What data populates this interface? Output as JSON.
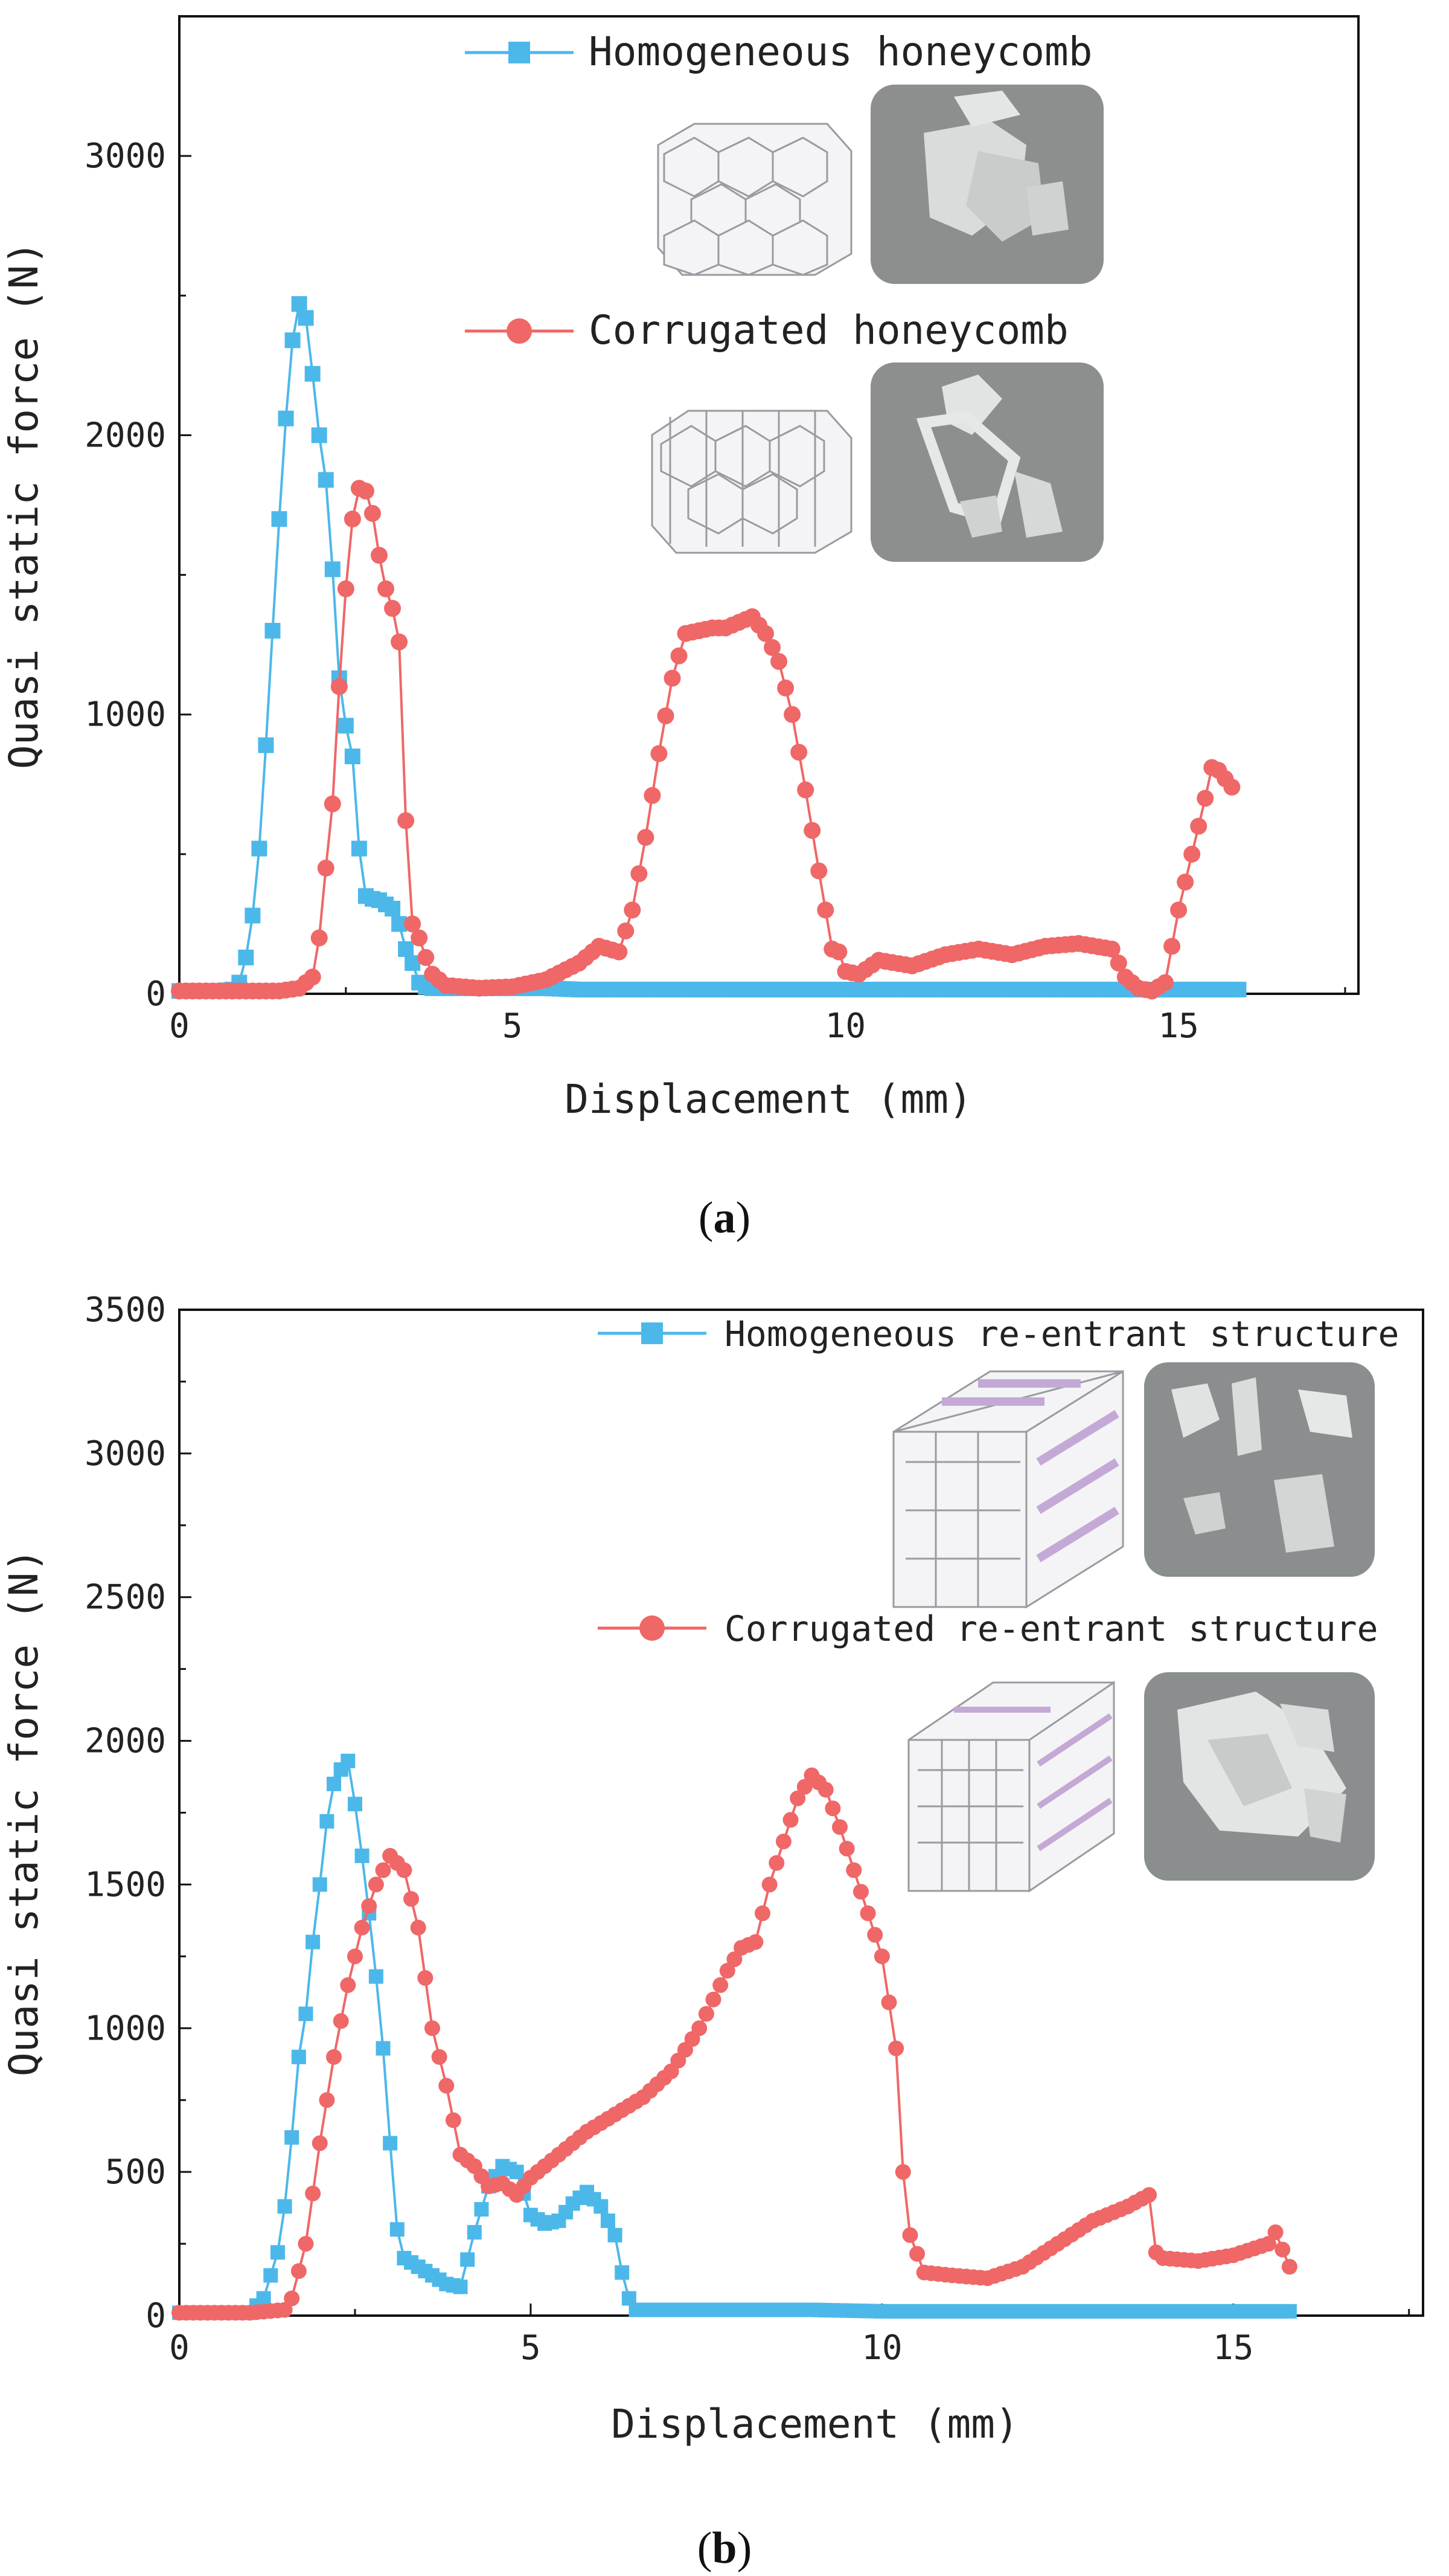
{
  "chart_data": [
    {
      "type": "line",
      "panel": "a",
      "caption": "(a)",
      "xlabel": "Displacement (mm)",
      "ylabel": "Quasi static force (N)",
      "xlim": [
        0,
        17.7
      ],
      "ylim": [
        0,
        3500
      ],
      "xticks": [
        0,
        5,
        10,
        15
      ],
      "yticks": [
        0,
        1000,
        2000,
        3000
      ],
      "xtick_labels": [
        "0",
        "5",
        "10",
        "15"
      ],
      "ytick_labels": [
        "0",
        "1000",
        "2000",
        "3000"
      ],
      "legend_position": "top-center",
      "series": [
        {
          "name": "Homogeneous honeycomb",
          "color": "#4cb8ea",
          "marker": "square",
          "x": [
            0,
            0.2,
            0.4,
            0.6,
            0.8,
            0.9,
            1.0,
            1.1,
            1.2,
            1.3,
            1.4,
            1.5,
            1.6,
            1.7,
            1.8,
            1.9,
            2.0,
            2.1,
            2.2,
            2.3,
            2.4,
            2.5,
            2.6,
            2.7,
            2.8,
            2.9,
            3.0,
            3.1,
            3.2,
            3.3,
            3.4,
            3.5,
            3.6,
            3.7,
            3.8,
            4.0,
            4.5,
            5.0,
            5.5,
            6.0,
            7.0,
            8.0,
            9.0,
            10.0,
            11.0,
            12.0,
            13.0,
            14.0,
            15.0,
            15.9
          ],
          "y": [
            10,
            10,
            10,
            10,
            15,
            40,
            130,
            280,
            520,
            890,
            1300,
            1700,
            2060,
            2340,
            2470,
            2420,
            2220,
            2000,
            1840,
            1520,
            1130,
            960,
            850,
            520,
            350,
            340,
            335,
            320,
            305,
            250,
            160,
            110,
            40,
            25,
            20,
            20,
            20,
            20,
            20,
            15,
            15,
            15,
            15,
            15,
            15,
            15,
            15,
            15,
            15,
            15
          ]
        },
        {
          "name": "Corrugated honeycomb",
          "color": "#ef6767",
          "marker": "circle",
          "x": [
            0,
            0.5,
            1.0,
            1.5,
            1.8,
            2.0,
            2.1,
            2.2,
            2.3,
            2.4,
            2.5,
            2.6,
            2.7,
            2.8,
            2.9,
            3.0,
            3.1,
            3.2,
            3.3,
            3.4,
            3.5,
            3.6,
            3.7,
            3.8,
            4.0,
            4.5,
            5.0,
            5.5,
            6.0,
            6.3,
            6.6,
            6.8,
            7.0,
            7.2,
            7.4,
            7.6,
            7.8,
            8.0,
            8.2,
            8.4,
            8.6,
            8.8,
            9.0,
            9.2,
            9.4,
            9.6,
            9.8,
            9.9,
            10.0,
            10.2,
            10.5,
            11.0,
            11.5,
            12.0,
            12.5,
            13.0,
            13.5,
            14.0,
            14.2,
            14.4,
            14.6,
            14.8,
            15.0,
            15.2,
            15.4,
            15.5,
            15.6,
            15.8
          ],
          "y": [
            10,
            10,
            10,
            10,
            20,
            60,
            200,
            450,
            680,
            1100,
            1450,
            1700,
            1810,
            1800,
            1720,
            1570,
            1450,
            1380,
            1260,
            620,
            250,
            200,
            130,
            70,
            30,
            20,
            25,
            50,
            110,
            170,
            150,
            300,
            560,
            860,
            1130,
            1290,
            1300,
            1310,
            1310,
            1330,
            1350,
            1290,
            1190,
            1000,
            730,
            440,
            160,
            150,
            80,
            70,
            120,
            100,
            140,
            160,
            140,
            170,
            180,
            160,
            60,
            20,
            10,
            40,
            300,
            500,
            700,
            810,
            800,
            740
          ]
        }
      ],
      "legend": [
        {
          "label": "Homogeneous honeycomb"
        },
        {
          "label": "Corrugated honeycomb"
        }
      ]
    },
    {
      "type": "line",
      "panel": "b",
      "caption": "(b)",
      "xlabel": "Displacement (mm)",
      "ylabel": "Quasi static force (N)",
      "xlim": [
        0,
        17.7
      ],
      "ylim": [
        0,
        3500
      ],
      "xticks": [
        0,
        5,
        10,
        15
      ],
      "yticks": [
        0,
        500,
        1000,
        1500,
        2000,
        2500,
        3000,
        3500
      ],
      "xtick_labels": [
        "0",
        "5",
        "10",
        "15"
      ],
      "ytick_labels": [
        "0",
        "500",
        "1000",
        "1500",
        "2000",
        "2500",
        "3000",
        "3500"
      ],
      "legend_position": "top-right",
      "series": [
        {
          "name": "Homogeneous re-entrant structure",
          "color": "#4cb8ea",
          "marker": "square",
          "x": [
            0,
            0.5,
            1.0,
            1.2,
            1.4,
            1.5,
            1.6,
            1.7,
            1.8,
            1.9,
            2.0,
            2.1,
            2.2,
            2.3,
            2.4,
            2.5,
            2.6,
            2.7,
            2.8,
            2.9,
            3.0,
            3.1,
            3.2,
            3.4,
            3.6,
            3.8,
            4.0,
            4.2,
            4.4,
            4.6,
            4.8,
            5.0,
            5.2,
            5.4,
            5.6,
            5.8,
            6.0,
            6.2,
            6.3,
            6.4,
            6.5,
            7.0,
            8.0,
            9.0,
            10.0,
            11.0,
            12.0,
            13.0,
            14.0,
            15.0,
            15.8
          ],
          "y": [
            10,
            10,
            10,
            60,
            220,
            380,
            620,
            900,
            1050,
            1300,
            1500,
            1720,
            1850,
            1900,
            1930,
            1780,
            1600,
            1400,
            1180,
            930,
            600,
            300,
            200,
            170,
            140,
            110,
            100,
            290,
            450,
            520,
            500,
            350,
            320,
            330,
            390,
            430,
            380,
            280,
            150,
            60,
            20,
            20,
            20,
            20,
            15,
            15,
            15,
            15,
            15,
            15,
            15
          ]
        },
        {
          "name": "Corrugated re-entrant structure",
          "color": "#ef6767",
          "marker": "circle",
          "x": [
            0,
            0.5,
            1.0,
            1.5,
            1.6,
            1.8,
            2.0,
            2.2,
            2.4,
            2.6,
            2.8,
            3.0,
            3.2,
            3.4,
            3.6,
            3.8,
            4.0,
            4.2,
            4.4,
            4.6,
            4.8,
            5.0,
            5.4,
            5.8,
            6.2,
            6.6,
            7.0,
            7.4,
            7.8,
            8.0,
            8.2,
            8.4,
            8.6,
            8.8,
            9.0,
            9.2,
            9.4,
            9.6,
            9.8,
            10.0,
            10.2,
            10.3,
            10.4,
            10.6,
            11.0,
            11.5,
            12.0,
            12.5,
            13.0,
            13.5,
            13.8,
            13.9,
            14.0,
            14.5,
            15.0,
            15.5,
            15.6,
            15.8
          ],
          "y": [
            10,
            10,
            10,
            20,
            60,
            250,
            600,
            900,
            1150,
            1350,
            1500,
            1600,
            1550,
            1350,
            1000,
            800,
            560,
            520,
            450,
            460,
            420,
            480,
            560,
            640,
            700,
            760,
            850,
            1000,
            1200,
            1280,
            1300,
            1500,
            1650,
            1800,
            1880,
            1830,
            1700,
            1550,
            1400,
            1250,
            930,
            500,
            280,
            150,
            140,
            130,
            170,
            250,
            330,
            380,
            420,
            220,
            200,
            190,
            210,
            250,
            290,
            170
          ]
        }
      ],
      "legend": [
        {
          "label": "Homogeneous re-entrant structure"
        },
        {
          "label": "Corrugated re-entrant structure"
        }
      ]
    }
  ]
}
